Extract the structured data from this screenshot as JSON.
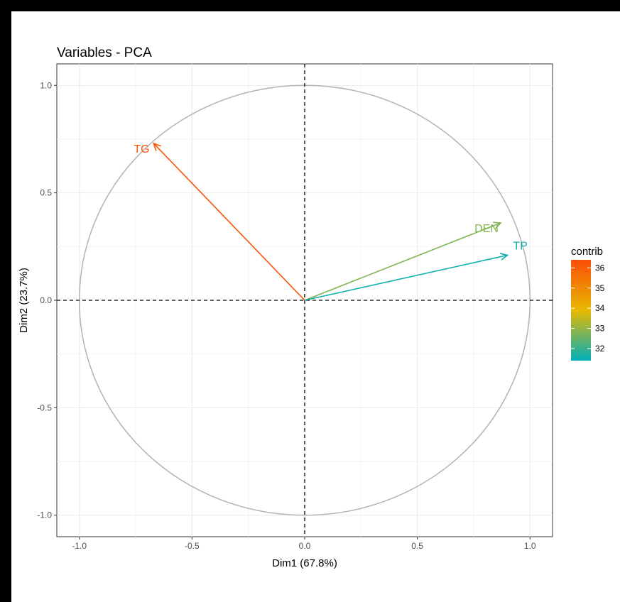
{
  "chart_data": {
    "type": "scatter",
    "subtype": "pca-variable-correlation-circle",
    "title": "Variables - PCA",
    "xlabel": "Dim1 (67.8%)",
    "ylabel": "Dim2 (23.7%)",
    "xlim": [
      -1.1,
      1.1
    ],
    "ylim": [
      -1.1,
      1.1
    ],
    "x_ticks": [
      "-1.0",
      "-0.5",
      "0.0",
      "0.5",
      "1.0"
    ],
    "y_ticks": [
      "-1.0",
      "-0.5",
      "0.0",
      "0.5",
      "1.0"
    ],
    "grid": true,
    "unit_circle": true,
    "variables": [
      {
        "label": "TG",
        "x": -0.67,
        "y": 0.73,
        "contrib": 36.3
      },
      {
        "label": "DEN",
        "x": 0.87,
        "y": 0.36,
        "contrib": 32.8
      },
      {
        "label": "TP",
        "x": 0.9,
        "y": 0.21,
        "contrib": 31.6
      }
    ],
    "legend": {
      "title": "contrib",
      "placement": "right",
      "ticks": [
        "36",
        "35",
        "34",
        "33",
        "32"
      ],
      "range": [
        31.4,
        36.4
      ],
      "colors": [
        "#00AFBB",
        "#E7B800",
        "#FC4E07"
      ]
    }
  }
}
